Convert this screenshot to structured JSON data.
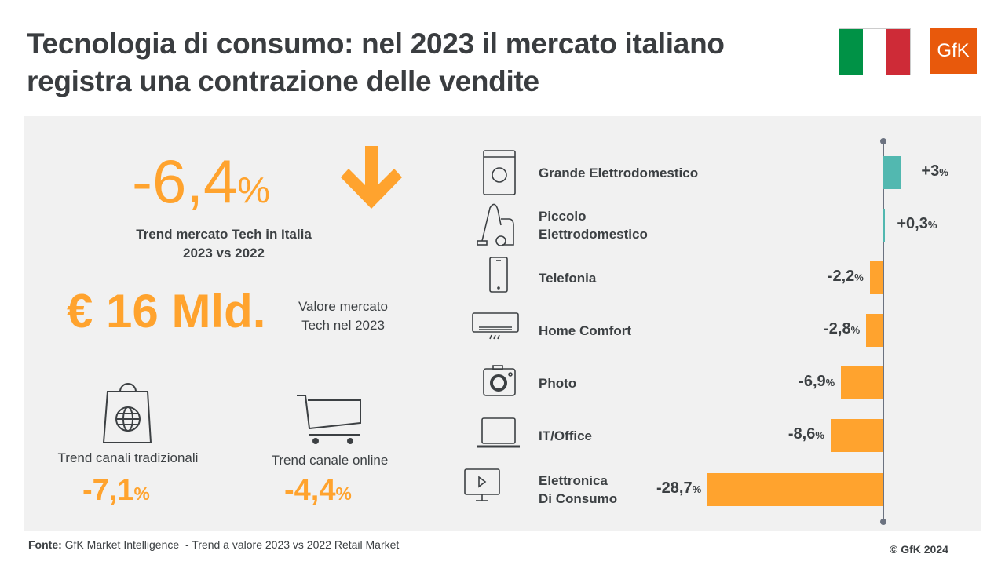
{
  "header": {
    "title_line1": "Tecnologia di consumo: nel 2023 il mercato italiano",
    "title_line2": "registra una contrazione delle vendite",
    "logo_text": "GfK",
    "flag_colors": [
      "#009246",
      "#ffffff",
      "#ce2b37"
    ],
    "brand_color": "#e8590c"
  },
  "kpis": {
    "market_trend": {
      "value": "-6,4",
      "unit": "%",
      "label_line1": "Trend mercato Tech in Italia",
      "label_line2": "2023 vs 2022",
      "icon": "arrow-down-icon"
    },
    "market_value": {
      "value": "€ 16 Mld.",
      "label_line1": "Valore mercato",
      "label_line2": "Tech nel 2023"
    },
    "traditional": {
      "label": "Trend canali tradizionali",
      "value": "-7,1",
      "unit": "%",
      "icon": "shopping-bag-globe-icon"
    },
    "online": {
      "label": "Trend canale online",
      "value": "-4,4",
      "unit": "%",
      "icon": "shopping-cart-icon"
    }
  },
  "chart_data": {
    "type": "bar",
    "orientation": "horizontal",
    "categories": [
      "Grande Elettrodomestico",
      "Piccolo Elettrodomestico",
      "Telefonia",
      "Home Comfort",
      "Photo",
      "IT/Office",
      "Elettronica Di Consumo"
    ],
    "category_lines": [
      [
        "Grande Elettrodomestico"
      ],
      [
        "Piccolo",
        "Elettrodomestico"
      ],
      [
        "Telefonia"
      ],
      [
        "Home Comfort"
      ],
      [
        "Photo"
      ],
      [
        "IT/Office"
      ],
      [
        "Elettronica",
        "Di Consumo"
      ]
    ],
    "icons": [
      "washing-machine-icon",
      "vacuum-cleaner-icon",
      "smartphone-icon",
      "air-conditioner-icon",
      "camera-icon",
      "laptop-icon",
      "tv-icon"
    ],
    "values": [
      3,
      0.3,
      -2.2,
      -2.8,
      -6.9,
      -8.6,
      -28.7
    ],
    "labels": [
      "+3",
      "+0,3",
      "-2,2",
      "-2,8",
      "-6,9",
      "-8,6",
      "-28,7"
    ],
    "unit": "%",
    "positive_color": "#52b8b0",
    "negative_color": "#ffa32e",
    "accent_color": "#ffa32e"
  },
  "footer": {
    "source_label": "Fonte:",
    "source_text": " GfK Market Intelligence  - Trend a valore 2023 vs 2022 Retail Market",
    "copyright": "© GfK 2024"
  }
}
